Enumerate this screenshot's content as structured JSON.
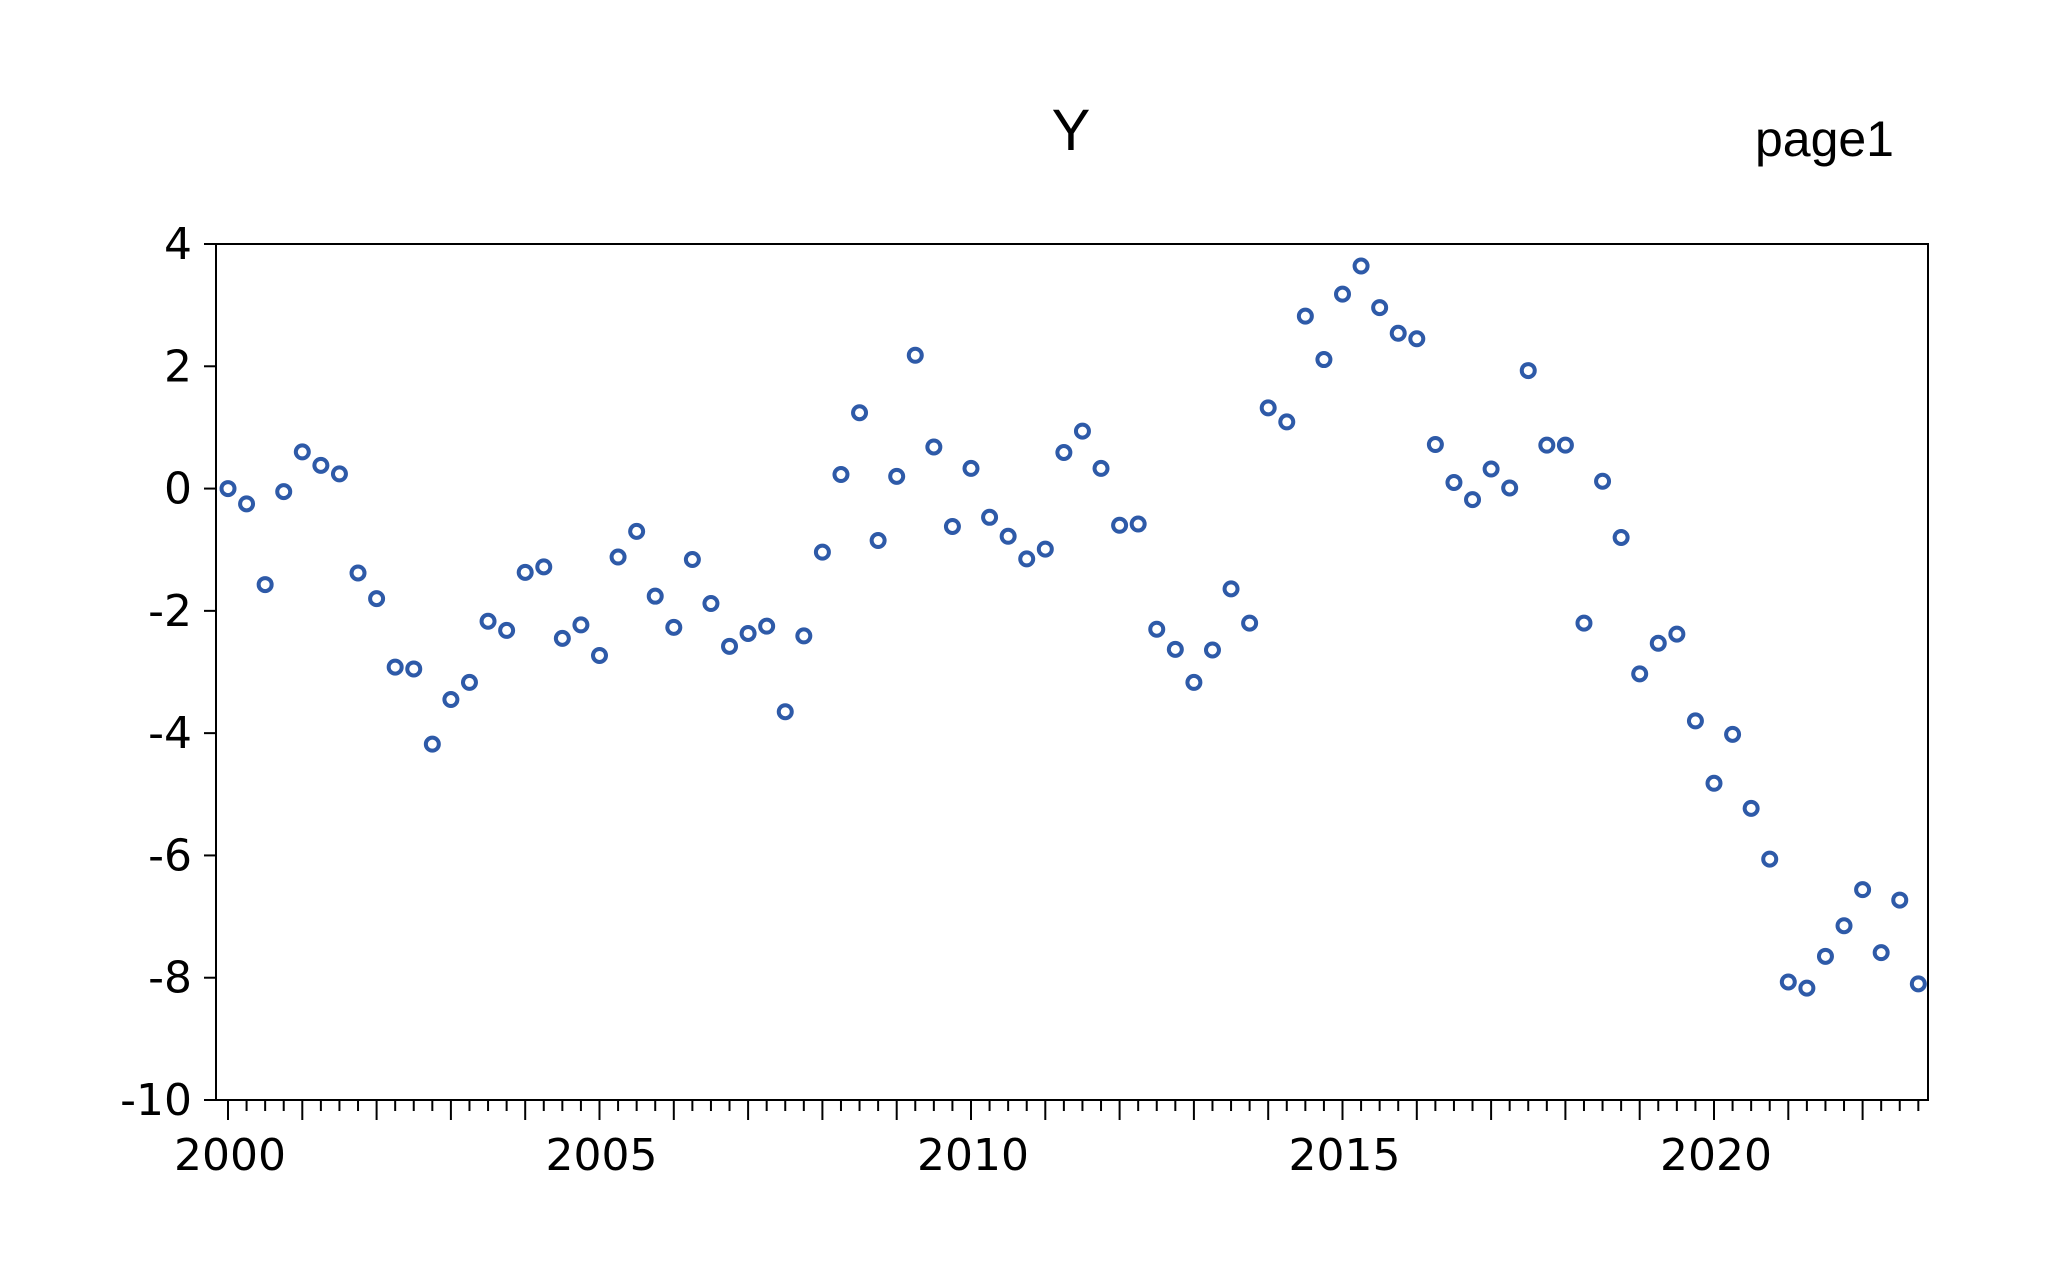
{
  "chart_data": {
    "type": "scatter",
    "title": "Y",
    "page_label": "page1",
    "xlabel": "",
    "ylabel": "",
    "x_start": 2000.0,
    "x_step": 0.25,
    "xlim": [
      2000,
      2022.75
    ],
    "ylim": [
      -10,
      4
    ],
    "yticks": [
      "4",
      "2",
      "0",
      "-2",
      "-4",
      "-6",
      "-8",
      "-10"
    ],
    "ytick_values": [
      4,
      2,
      0,
      -2,
      -4,
      -6,
      -8,
      -10
    ],
    "xticks": [
      "2000",
      "2005",
      "2010",
      "2015",
      "2020"
    ],
    "xtick_values": [
      2000,
      2005,
      2010,
      2015,
      2020
    ],
    "grid": false,
    "legend": "none",
    "marker_color": "#2e5aa8",
    "series": [
      {
        "values": [
          0.0,
          -0.25,
          -1.57,
          -0.05,
          0.6,
          0.38,
          0.24,
          -1.38,
          -1.8,
          -2.92,
          -2.95,
          -4.18,
          -3.45,
          -3.17,
          -2.17,
          -2.32,
          -1.37,
          -1.28,
          -2.45,
          -2.23,
          -2.73,
          -1.12,
          -0.7,
          -1.76,
          -2.27,
          -1.16,
          -1.88,
          -2.58,
          -2.37,
          -2.25,
          -3.65,
          -2.41,
          -1.04,
          0.23,
          1.24,
          -0.85,
          0.2,
          2.18,
          0.68,
          -0.62,
          0.33,
          -0.47,
          -0.78,
          -1.15,
          -0.99,
          0.59,
          0.94,
          0.33,
          -0.6,
          -0.58,
          -2.3,
          -2.63,
          -3.17,
          -2.64,
          -1.64,
          -2.2,
          1.32,
          1.09,
          2.82,
          2.11,
          3.18,
          3.64,
          2.96,
          2.54,
          2.45,
          0.72,
          0.1,
          -0.18,
          0.32,
          0.01,
          1.93,
          0.71,
          0.71,
          -2.2,
          0.12,
          -0.8,
          -3.03,
          -2.53,
          -2.38,
          -3.8,
          -4.82,
          -4.02,
          -5.23,
          -6.06,
          -8.07,
          -8.17,
          -7.65,
          -7.15,
          -6.56,
          -7.59,
          -6.73,
          -8.1
        ]
      }
    ]
  }
}
